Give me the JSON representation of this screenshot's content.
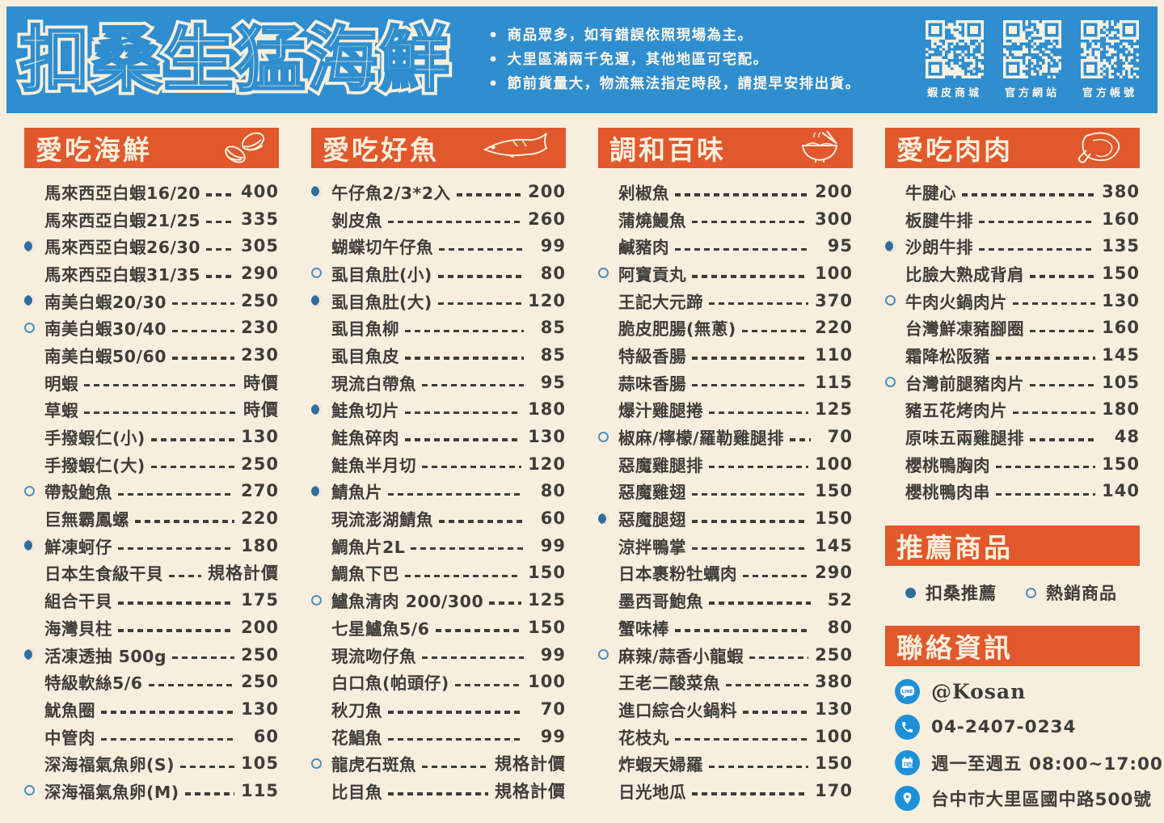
{
  "header": {
    "title": "扣桑生猛海鮮",
    "notes": [
      "商品眾多，如有錯誤依照現場為主。",
      "大里區滿兩千免運，其他地區可宅配。",
      "節前貨量大，物流無法指定時段，請提早安排出貨。"
    ],
    "qr_codes": [
      {
        "label": "蝦皮商城"
      },
      {
        "label": "官方網站"
      },
      {
        "label": "官方帳號"
      }
    ]
  },
  "colors": {
    "background": "#f8eedd",
    "band_blue": "#2e8ecf",
    "bar_orange": "#e0582c",
    "text_dark": "#3f3d3a",
    "dot_blue": "#2f6e9d",
    "contact_blue": "#1e90d8",
    "cream_text": "#f9efdc"
  },
  "legend": {
    "title": "推薦商品",
    "recommended": "扣桑推薦",
    "hot": "熱銷商品"
  },
  "contact": {
    "title": "聯絡資訊",
    "line_id": "@Kosan",
    "phone": "04-2407-0234",
    "hours": "週一至週五 08:00~17:00",
    "address": "台中市大里區國中路500號"
  },
  "sections": [
    {
      "title": "愛吃海鮮",
      "icon": "shellfish-icon",
      "items": [
        {
          "name": "馬來西亞白蝦16/20",
          "price": "400",
          "mark": ""
        },
        {
          "name": "馬來西亞白蝦21/25",
          "price": "335",
          "mark": ""
        },
        {
          "name": "馬來西亞白蝦26/30",
          "price": "305",
          "mark": "rec"
        },
        {
          "name": "馬來西亞白蝦31/35",
          "price": "290",
          "mark": ""
        },
        {
          "name": "南美白蝦20/30",
          "price": "250",
          "mark": "rec"
        },
        {
          "name": "南美白蝦30/40",
          "price": "230",
          "mark": "hot"
        },
        {
          "name": "南美白蝦50/60",
          "price": "230",
          "mark": ""
        },
        {
          "name": "明蝦",
          "price": "時價",
          "mark": ""
        },
        {
          "name": "草蝦",
          "price": "時價",
          "mark": ""
        },
        {
          "name": "手撥蝦仁(小)",
          "price": "130",
          "mark": ""
        },
        {
          "name": "手撥蝦仁(大)",
          "price": "250",
          "mark": ""
        },
        {
          "name": "帶殼鮑魚",
          "price": "270",
          "mark": "hot"
        },
        {
          "name": "巨無霸鳳螺",
          "price": "220",
          "mark": ""
        },
        {
          "name": "鮮凍蚵仔",
          "price": "180",
          "mark": "rec"
        },
        {
          "name": "日本生食級干貝",
          "price": "規格計價",
          "mark": ""
        },
        {
          "name": "組合干貝",
          "price": "175",
          "mark": ""
        },
        {
          "name": "海灣貝柱",
          "price": "200",
          "mark": ""
        },
        {
          "name": "活凍透抽 500g",
          "price": "250",
          "mark": "rec"
        },
        {
          "name": "特級軟絲5/6",
          "price": "250",
          "mark": ""
        },
        {
          "name": "魷魚圈",
          "price": "130",
          "mark": ""
        },
        {
          "name": "中管肉",
          "price": "60",
          "mark": ""
        },
        {
          "name": "深海福氣魚卵(S)",
          "price": "105",
          "mark": ""
        },
        {
          "name": "深海福氣魚卵(M)",
          "price": "115",
          "mark": "hot"
        }
      ]
    },
    {
      "title": "愛吃好魚",
      "icon": "fish-icon",
      "items": [
        {
          "name": "午仔魚2/3*2入",
          "price": "200",
          "mark": "rec"
        },
        {
          "name": "剝皮魚",
          "price": "260",
          "mark": ""
        },
        {
          "name": "蝴蝶切午仔魚",
          "price": "99",
          "mark": ""
        },
        {
          "name": "虱目魚肚(小)",
          "price": "80",
          "mark": "hot"
        },
        {
          "name": "虱目魚肚(大)",
          "price": "120",
          "mark": "rec"
        },
        {
          "name": "虱目魚柳",
          "price": "85",
          "mark": ""
        },
        {
          "name": "虱目魚皮",
          "price": "85",
          "mark": ""
        },
        {
          "name": "現流白帶魚",
          "price": "95",
          "mark": ""
        },
        {
          "name": "鮭魚切片",
          "price": "180",
          "mark": "rec"
        },
        {
          "name": "鮭魚碎肉",
          "price": "130",
          "mark": ""
        },
        {
          "name": "鮭魚半月切",
          "price": "120",
          "mark": ""
        },
        {
          "name": "鯖魚片",
          "price": "80",
          "mark": "rec"
        },
        {
          "name": "現流澎湖鯖魚",
          "price": "60",
          "mark": ""
        },
        {
          "name": "鯛魚片2L",
          "price": "99",
          "mark": ""
        },
        {
          "name": "鯛魚下巴",
          "price": "150",
          "mark": ""
        },
        {
          "name": "鱸魚清肉 200/300",
          "price": "125",
          "mark": "hot"
        },
        {
          "name": "七星鱸魚5/6",
          "price": "150",
          "mark": ""
        },
        {
          "name": "現流吻仔魚",
          "price": "99",
          "mark": ""
        },
        {
          "name": "白口魚(帕頭仔)",
          "price": "100",
          "mark": ""
        },
        {
          "name": "秋刀魚",
          "price": "70",
          "mark": ""
        },
        {
          "name": "花鯧魚",
          "price": "99",
          "mark": ""
        },
        {
          "name": "龍虎石斑魚",
          "price": "規格計價",
          "mark": "hot"
        },
        {
          "name": "比目魚",
          "price": "規格計價",
          "mark": ""
        }
      ]
    },
    {
      "title": "調和百味",
      "icon": "hotpot-icon",
      "items": [
        {
          "name": "剁椒魚",
          "price": "200",
          "mark": ""
        },
        {
          "name": "蒲燒鰻魚",
          "price": "300",
          "mark": ""
        },
        {
          "name": "鹹豬肉",
          "price": "95",
          "mark": ""
        },
        {
          "name": "阿寶貢丸",
          "price": "100",
          "mark": "hot"
        },
        {
          "name": "王記大元蹄",
          "price": "370",
          "mark": ""
        },
        {
          "name": "脆皮肥腸(無蔥)",
          "price": "220",
          "mark": ""
        },
        {
          "name": "特級香腸",
          "price": "110",
          "mark": ""
        },
        {
          "name": "蒜味香腸",
          "price": "115",
          "mark": ""
        },
        {
          "name": "爆汁雞腿捲",
          "price": "125",
          "mark": ""
        },
        {
          "name": "椒麻/檸檬/羅勒雞腿排",
          "price": "70",
          "mark": "hot"
        },
        {
          "name": "惡魔雞腿排",
          "price": "100",
          "mark": ""
        },
        {
          "name": "惡魔雞翅",
          "price": "150",
          "mark": ""
        },
        {
          "name": "惡魔腿翅",
          "price": "150",
          "mark": "rec"
        },
        {
          "name": "涼拌鴨掌",
          "price": "145",
          "mark": ""
        },
        {
          "name": "日本裹粉牡蠣肉",
          "price": "290",
          "mark": ""
        },
        {
          "name": "墨西哥鮑魚",
          "price": "52",
          "mark": ""
        },
        {
          "name": "蟹味棒",
          "price": "80",
          "mark": ""
        },
        {
          "name": "麻辣/蒜香小龍蝦",
          "price": "250",
          "mark": "hot"
        },
        {
          "name": "王老二酸菜魚",
          "price": "380",
          "mark": ""
        },
        {
          "name": "進口綜合火鍋料",
          "price": "130",
          "mark": ""
        },
        {
          "name": "花枝丸",
          "price": "100",
          "mark": ""
        },
        {
          "name": "炸蝦天婦羅",
          "price": "150",
          "mark": ""
        },
        {
          "name": "日光地瓜",
          "price": "170",
          "mark": ""
        }
      ]
    },
    {
      "title": "愛吃肉肉",
      "icon": "meat-icon",
      "items": [
        {
          "name": "牛腱心",
          "price": "380",
          "mark": ""
        },
        {
          "name": "板腱牛排",
          "price": "160",
          "mark": ""
        },
        {
          "name": "沙朗牛排",
          "price": "135",
          "mark": "rec"
        },
        {
          "name": "比臉大熟成背肩",
          "price": "150",
          "mark": ""
        },
        {
          "name": "牛肉火鍋肉片",
          "price": "130",
          "mark": "hot"
        },
        {
          "name": "台灣鮮凍豬腳圈",
          "price": "160",
          "mark": ""
        },
        {
          "name": "霜降松阪豬",
          "price": "145",
          "mark": ""
        },
        {
          "name": "台灣前腿豬肉片",
          "price": "105",
          "mark": "hot"
        },
        {
          "name": "豬五花烤肉片",
          "price": "180",
          "mark": ""
        },
        {
          "name": "原味五兩雞腿排",
          "price": "48",
          "mark": ""
        },
        {
          "name": "櫻桃鴨胸肉",
          "price": "150",
          "mark": ""
        },
        {
          "name": "櫻桃鴨肉串",
          "price": "140",
          "mark": ""
        }
      ]
    }
  ]
}
